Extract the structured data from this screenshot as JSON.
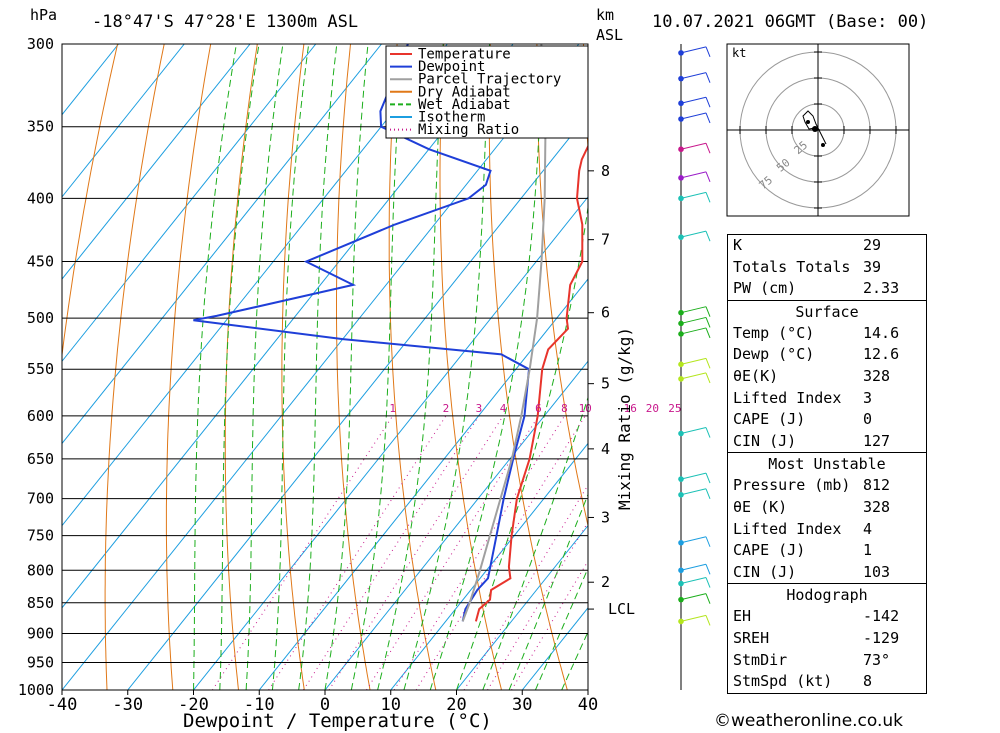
{
  "header": {
    "hpa_label": "hPa",
    "location": "-18°47'S 47°28'E 1300m ASL",
    "km_label": "km",
    "asl_label": "ASL",
    "datetime": "10.07.2021 06GMT (Base: 00)"
  },
  "colors": {
    "temperature": "#e8342c",
    "dewpoint": "#1f3fd8",
    "parcel": "#a0a0a0",
    "dry_adiabat": "#e07818",
    "wet_adiabat": "#1cae1c",
    "isotherm": "#1c9ee0",
    "mixing_ratio": "#c8188c"
  },
  "chart_data": {
    "type": "line",
    "xlabel": "Dewpoint / Temperature (°C)",
    "ylabel": "hPa",
    "xlim": [
      -40,
      40
    ],
    "ylim": [
      1000,
      300
    ],
    "y_scale": "log",
    "pressure_ticks": [
      300,
      350,
      400,
      450,
      500,
      550,
      600,
      650,
      700,
      750,
      800,
      850,
      900,
      950,
      1000
    ],
    "temp_ticks": [
      -40,
      -30,
      -20,
      -10,
      0,
      10,
      20,
      30,
      40
    ],
    "km_ticks": [
      {
        "label": "8",
        "p": 380
      },
      {
        "label": "7",
        "p": 432
      },
      {
        "label": "6",
        "p": 495
      },
      {
        "label": "5",
        "p": 565
      },
      {
        "label": "4",
        "p": 638
      },
      {
        "label": "3",
        "p": 725
      },
      {
        "label": "2",
        "p": 818
      },
      {
        "label": "LCL",
        "p": 860
      }
    ],
    "mixing_ratio_axis_label": "Mixing Ratio (g/kg)",
    "mixing_ratio_labels": [
      "1",
      "2",
      "3",
      "4",
      "6",
      "8",
      "10",
      "16",
      "20",
      "25"
    ],
    "legend": [
      "Temperature",
      "Dewpoint",
      "Parcel Trajectory",
      "Dry Adiabat",
      "Wet Adiabat",
      "Isotherm",
      "Mixing Ratio"
    ],
    "series": [
      {
        "name": "Temperature",
        "points": [
          [
            880,
            14.6
          ],
          [
            860,
            13.6
          ],
          [
            845,
            14.1
          ],
          [
            830,
            13.1
          ],
          [
            812,
            14.6
          ],
          [
            795,
            13.0
          ],
          [
            750,
            9.6
          ],
          [
            700,
            5.9
          ],
          [
            650,
            3.0
          ],
          [
            600,
            -1.0
          ],
          [
            550,
            -6.0
          ],
          [
            530,
            -7.5
          ],
          [
            510,
            -7.0
          ],
          [
            500,
            -8.5
          ],
          [
            470,
            -12.0
          ],
          [
            450,
            -13.0
          ],
          [
            420,
            -17.5
          ],
          [
            400,
            -21.5
          ],
          [
            380,
            -24.5
          ],
          [
            372,
            -25.5
          ],
          [
            365,
            -26.0
          ],
          [
            358,
            -26.5
          ]
        ]
      },
      {
        "name": "Dewpoint",
        "points": [
          [
            880,
            12.6
          ],
          [
            860,
            11.5
          ],
          [
            830,
            11.0
          ],
          [
            812,
            11.2
          ],
          [
            750,
            7.3
          ],
          [
            700,
            3.9
          ],
          [
            650,
            0.5
          ],
          [
            600,
            -3.0
          ],
          [
            550,
            -8.0
          ],
          [
            535,
            -14.0
          ],
          [
            520,
            -40.0
          ],
          [
            502,
            -65.0
          ],
          [
            498,
            -62.0
          ],
          [
            470,
            -45.0
          ],
          [
            450,
            -55.0
          ],
          [
            420,
            -46.0
          ],
          [
            400,
            -38.0
          ],
          [
            390,
            -37.0
          ],
          [
            380,
            -38.0
          ],
          [
            365,
            -50.0
          ],
          [
            350,
            -60.0
          ],
          [
            340,
            -62.0
          ],
          [
            300,
            -66.0
          ]
        ]
      },
      {
        "name": "Parcel Trajectory",
        "points": [
          [
            880,
            12.6
          ],
          [
            850,
            11.4
          ],
          [
            800,
            9.0
          ],
          [
            750,
            6.3
          ],
          [
            700,
            3.4
          ],
          [
            650,
            0.3
          ],
          [
            600,
            -3.5
          ],
          [
            550,
            -7.9
          ],
          [
            500,
            -13.0
          ],
          [
            450,
            -19.2
          ],
          [
            400,
            -26.4
          ],
          [
            350,
            -35.0
          ],
          [
            300,
            -45.7
          ]
        ]
      }
    ]
  },
  "wind_profile": {
    "axis_color": "#000000",
    "dots": [
      {
        "p": 880,
        "color": "#b4e61e"
      },
      {
        "p": 845,
        "color": "#1cae1c"
      },
      {
        "p": 820,
        "color": "#1cc1b6"
      },
      {
        "p": 800,
        "color": "#1c9ee0"
      },
      {
        "p": 760,
        "color": "#1c9ee0"
      },
      {
        "p": 695,
        "color": "#1cc1b6"
      },
      {
        "p": 675,
        "color": "#1cc1b6"
      },
      {
        "p": 620,
        "color": "#1cc1b6"
      },
      {
        "p": 560,
        "color": "#b4e61e"
      },
      {
        "p": 545,
        "color": "#b4e61e"
      },
      {
        "p": 515,
        "color": "#1cae1c"
      },
      {
        "p": 505,
        "color": "#1cae1c"
      },
      {
        "p": 495,
        "color": "#1cae1c"
      },
      {
        "p": 430,
        "color": "#1cc1b6"
      },
      {
        "p": 400,
        "color": "#1cc1b6"
      },
      {
        "p": 385,
        "color": "#9a1cc8"
      },
      {
        "p": 365,
        "color": "#c8188c"
      },
      {
        "p": 345,
        "color": "#1f3fd8"
      },
      {
        "p": 335,
        "color": "#1f3fd8"
      },
      {
        "p": 320,
        "color": "#1f3fd8"
      },
      {
        "p": 305,
        "color": "#1f3fd8"
      }
    ]
  },
  "hodograph": {
    "unit_label": "kt",
    "ring_labels": [
      "25",
      "50",
      "75"
    ]
  },
  "indices_table": {
    "general": [
      {
        "label": "K",
        "value": "29"
      },
      {
        "label": "Totals Totals",
        "value": "39"
      },
      {
        "label": "PW (cm)",
        "value": "2.33"
      }
    ],
    "surface": {
      "title": "Surface",
      "rows": [
        {
          "label": "Temp (°C)",
          "value": "14.6"
        },
        {
          "label": "Dewp (°C)",
          "value": "12.6"
        },
        {
          "label": "θE(K)",
          "value": "328"
        },
        {
          "label": "Lifted Index",
          "value": "3"
        },
        {
          "label": "CAPE (J)",
          "value": "0"
        },
        {
          "label": "CIN (J)",
          "value": "127"
        }
      ]
    },
    "most_unstable": {
      "title": "Most Unstable",
      "rows": [
        {
          "label": "Pressure (mb)",
          "value": "812"
        },
        {
          "label": "θE (K)",
          "value": "328"
        },
        {
          "label": "Lifted Index",
          "value": "4"
        },
        {
          "label": "CAPE (J)",
          "value": "1"
        },
        {
          "label": "CIN (J)",
          "value": "103"
        }
      ]
    },
    "hodograph": {
      "title": "Hodograph",
      "rows": [
        {
          "label": "EH",
          "value": "-142"
        },
        {
          "label": "SREH",
          "value": "-129"
        },
        {
          "label": "StmDir",
          "value": "73°"
        },
        {
          "label": "StmSpd (kt)",
          "value": "8"
        }
      ]
    }
  },
  "credit": "©weatheronline.co.uk"
}
